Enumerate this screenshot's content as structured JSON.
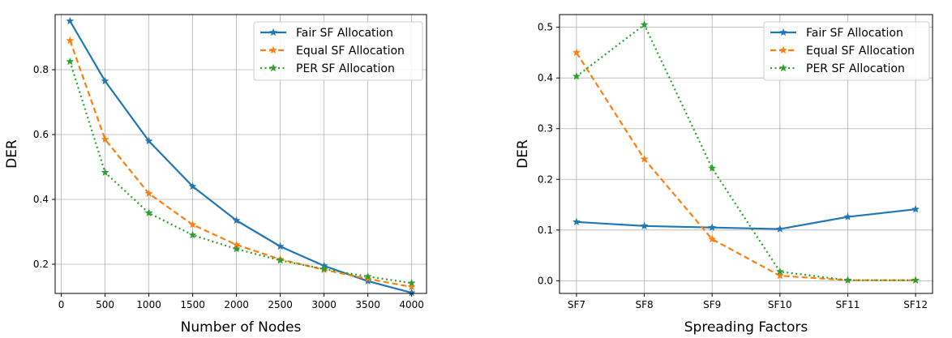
{
  "colors": {
    "fair": "#1f77b4",
    "equal": "#ff7f0e",
    "per": "#2ca02c",
    "grid": "#b0b0b0",
    "frame": "#000000"
  },
  "chart_data": [
    {
      "type": "line",
      "xlabel": "Number of Nodes",
      "ylabel": "DER",
      "xlim": [
        -70,
        4170
      ],
      "ylim": [
        0.11,
        0.97
      ],
      "xticks": [
        0,
        500,
        1000,
        1500,
        2000,
        2500,
        3000,
        3500,
        4000
      ],
      "yticks": [
        0.2,
        0.4,
        0.6,
        0.8
      ],
      "ytick_labels": [
        "0.2",
        "0.4",
        "0.6",
        "0.8"
      ],
      "grid": true,
      "legend_position": "top-right",
      "x": [
        100,
        500,
        1000,
        1500,
        2000,
        2500,
        3000,
        3500,
        4000
      ],
      "series": [
        {
          "name": "Fair SF Allocation",
          "color_key": "fair",
          "style": "solid",
          "values": [
            0.95,
            0.765,
            0.58,
            0.44,
            0.335,
            0.255,
            0.195,
            0.148,
            0.112
          ]
        },
        {
          "name": "Equal SF Allocation",
          "color_key": "equal",
          "style": "dashed",
          "values": [
            0.89,
            0.585,
            0.418,
            0.322,
            0.26,
            0.215,
            0.183,
            0.155,
            0.13
          ]
        },
        {
          "name": "PER SF Allocation",
          "color_key": "per",
          "style": "dotted",
          "values": [
            0.825,
            0.483,
            0.358,
            0.29,
            0.247,
            0.212,
            0.185,
            0.162,
            0.142
          ]
        }
      ]
    },
    {
      "type": "line",
      "xlabel": "Spreading Factors",
      "ylabel": "DER",
      "ylim": [
        -0.025,
        0.525
      ],
      "categories": [
        "SF7",
        "SF8",
        "SF9",
        "SF10",
        "SF11",
        "SF12"
      ],
      "yticks": [
        0.0,
        0.1,
        0.2,
        0.3,
        0.4,
        0.5
      ],
      "ytick_labels": [
        "0.0",
        "0.1",
        "0.2",
        "0.3",
        "0.4",
        "0.5"
      ],
      "grid": true,
      "legend_position": "top-right",
      "series": [
        {
          "name": "Fair SF Allocation",
          "color_key": "fair",
          "style": "solid",
          "values": [
            0.116,
            0.108,
            0.105,
            0.102,
            0.126,
            0.141
          ]
        },
        {
          "name": "Equal SF Allocation",
          "color_key": "equal",
          "style": "dashed",
          "values": [
            0.45,
            0.24,
            0.082,
            0.01,
            0.001,
            0.001
          ]
        },
        {
          "name": "PER SF Allocation",
          "color_key": "per",
          "style": "dotted",
          "values": [
            0.403,
            0.505,
            0.222,
            0.018,
            0.001,
            0.001
          ]
        }
      ]
    }
  ]
}
